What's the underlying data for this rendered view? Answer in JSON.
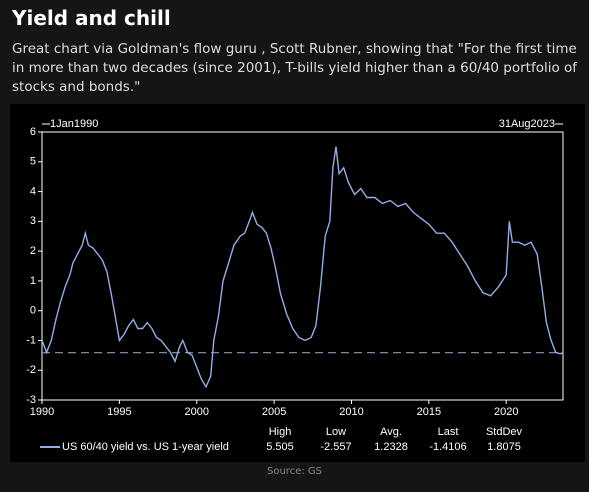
{
  "title": "Yield and chill",
  "caption": "Great chart via Goldman's flow guru , Scott Rubner, showing that \"For the first time in more than two decades (since 2001), T-bills yield higher than a 60/40 portfolio of stocks and bonds.\"",
  "source": "Source: GS",
  "chart_data": {
    "type": "line",
    "range_start": "1Jan1990",
    "range_end": "31Aug2023",
    "x": [
      1990.0,
      1990.3,
      1990.6,
      1990.9,
      1991.2,
      1991.5,
      1991.8,
      1992.0,
      1992.3,
      1992.6,
      1992.8,
      1993.0,
      1993.3,
      1993.6,
      1993.9,
      1994.2,
      1994.5,
      1994.8,
      1995.0,
      1995.3,
      1995.6,
      1995.9,
      1996.2,
      1996.5,
      1996.8,
      1997.1,
      1997.4,
      1997.7,
      1998.0,
      1998.3,
      1998.6,
      1998.9,
      1999.1,
      1999.4,
      1999.7,
      2000.0,
      2000.3,
      2000.6,
      2000.9,
      2001.1,
      2001.4,
      2001.7,
      2002.0,
      2002.4,
      2002.8,
      2003.1,
      2003.4,
      2003.6,
      2003.9,
      2004.2,
      2004.5,
      2004.8,
      2005.1,
      2005.4,
      2005.8,
      2006.2,
      2006.6,
      2007.0,
      2007.4,
      2007.7,
      2008.0,
      2008.3,
      2008.6,
      2008.8,
      2009.0,
      2009.2,
      2009.5,
      2009.8,
      2010.2,
      2010.6,
      2011.0,
      2011.5,
      2012.0,
      2012.5,
      2013.0,
      2013.5,
      2014.0,
      2014.5,
      2015.0,
      2015.5,
      2016.0,
      2016.5,
      2017.0,
      2017.5,
      2018.0,
      2018.5,
      2019.0,
      2019.5,
      2020.0,
      2020.2,
      2020.4,
      2020.8,
      2021.2,
      2021.6,
      2022.0,
      2022.3,
      2022.6,
      2022.9,
      2023.2,
      2023.5,
      2023.67
    ],
    "series": [
      {
        "name": "US 60/40 yield vs. US 1-year yield",
        "color": "#93aee6",
        "values": [
          -1.0,
          -1.4,
          -1.0,
          -0.3,
          0.3,
          0.8,
          1.2,
          1.6,
          1.9,
          2.2,
          2.6,
          2.2,
          2.1,
          1.9,
          1.7,
          1.3,
          0.5,
          -0.4,
          -1.0,
          -0.8,
          -0.5,
          -0.3,
          -0.6,
          -0.6,
          -0.4,
          -0.6,
          -0.9,
          -1.0,
          -1.2,
          -1.4,
          -1.7,
          -1.2,
          -1.0,
          -1.4,
          -1.5,
          -1.9,
          -2.3,
          -2.557,
          -2.2,
          -1.0,
          -0.2,
          1.0,
          1.5,
          2.2,
          2.5,
          2.6,
          3.0,
          3.3,
          2.9,
          2.8,
          2.6,
          2.1,
          1.4,
          0.6,
          -0.1,
          -0.6,
          -0.9,
          -1.0,
          -0.9,
          -0.5,
          0.8,
          2.5,
          3.0,
          4.8,
          5.505,
          4.6,
          4.8,
          4.3,
          3.9,
          4.1,
          3.8,
          3.8,
          3.6,
          3.7,
          3.5,
          3.6,
          3.3,
          3.1,
          2.9,
          2.6,
          2.6,
          2.3,
          1.9,
          1.5,
          1.0,
          0.6,
          0.5,
          0.8,
          1.2,
          3.0,
          2.3,
          2.3,
          2.2,
          2.3,
          1.9,
          0.8,
          -0.4,
          -1.0,
          -1.4,
          -1.45,
          -1.4106
        ]
      }
    ],
    "xlim": [
      1990,
      2023.67
    ],
    "xticks": [
      1990,
      1995,
      2000,
      2005,
      2010,
      2015,
      2020
    ],
    "ylim": [
      -3,
      6
    ],
    "yticks": [
      -3,
      -2,
      -1,
      0,
      1,
      2,
      3,
      4,
      5,
      6
    ],
    "stats": [
      {
        "label": "High",
        "value": 5.505
      },
      {
        "label": "Low",
        "value": -2.557
      },
      {
        "label": "Avg.",
        "value": 1.2328
      },
      {
        "label": "Last",
        "value": -1.4106
      },
      {
        "label": "StdDev",
        "value": 1.8075
      }
    ]
  }
}
